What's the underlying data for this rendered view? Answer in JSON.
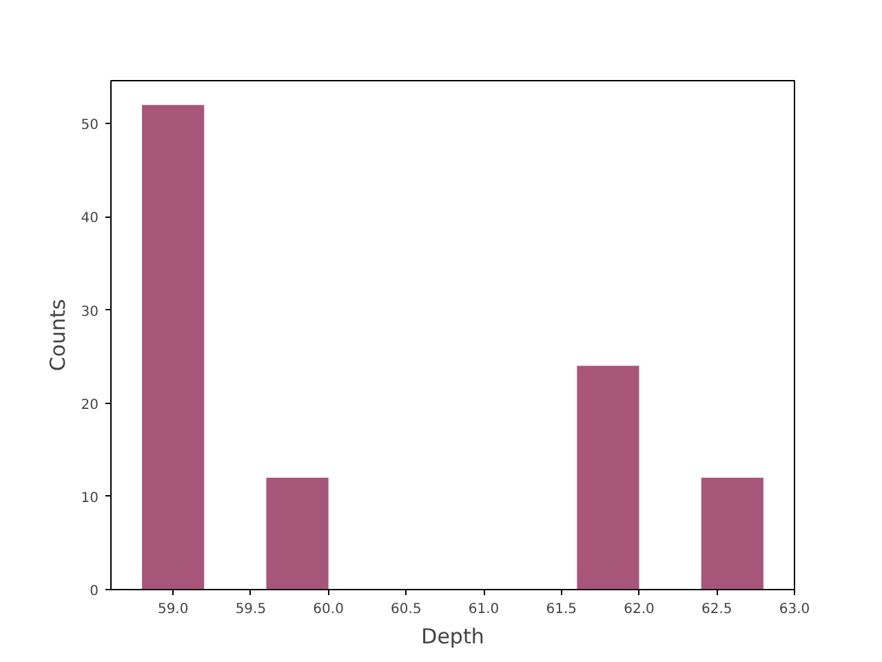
{
  "chart_data": {
    "type": "histogram",
    "xlabel": "Depth",
    "ylabel": "Counts",
    "bins": [
      58.8,
      59.2,
      59.6,
      60.0,
      60.4,
      60.8,
      61.2,
      61.6,
      62.0,
      62.4,
      62.8
    ],
    "values": [
      52,
      0,
      12,
      0,
      0,
      0,
      0,
      24,
      0,
      12
    ],
    "color": "#a8557a",
    "xlim": [
      58.6,
      63.0
    ],
    "ylim": [
      0,
      54.6
    ],
    "xticks": [
      {
        "value": 59.0,
        "label": "59.0"
      },
      {
        "value": 59.5,
        "label": "59.5"
      },
      {
        "value": 60.0,
        "label": "60.0"
      },
      {
        "value": 60.5,
        "label": "60.5"
      },
      {
        "value": 61.0,
        "label": "61.0"
      },
      {
        "value": 61.5,
        "label": "61.5"
      },
      {
        "value": 62.0,
        "label": "62.0"
      },
      {
        "value": 62.5,
        "label": "62.5"
      },
      {
        "value": 63.0,
        "label": "63.0"
      }
    ],
    "yticks": [
      0,
      10,
      20,
      30,
      40,
      50
    ],
    "grid": false
  }
}
